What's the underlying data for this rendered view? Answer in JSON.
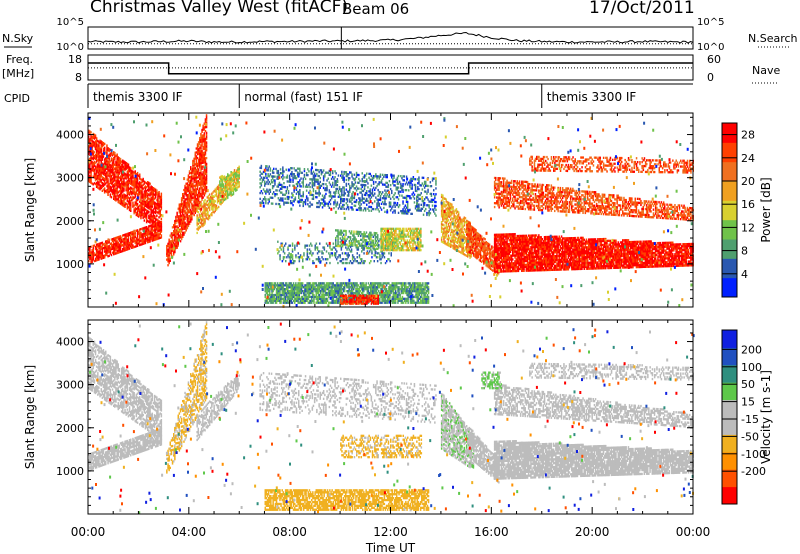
{
  "header": {
    "title": "Christmas Valley West (fitACF)",
    "beam": "Beam 06",
    "date": "17/Oct/2011"
  },
  "labels": {
    "nsky": "N.Sky",
    "nsearch": "N.Search",
    "freq": "Freq.",
    "freq_unit": "[MHz]",
    "nave": "Nave",
    "cpid": "CPID",
    "noise_left_ticks": [
      "10^5",
      "10^0"
    ],
    "noise_right_ticks": [
      "10^5",
      "10^0"
    ],
    "freq_ticks": [
      "18",
      "8"
    ],
    "nave_ticks": [
      "60",
      "0"
    ]
  },
  "cpid_segments": [
    {
      "start_h": 0,
      "end_h": 6,
      "label": "themis 3300 IF"
    },
    {
      "start_h": 6,
      "end_h": 18,
      "label": "normal (fast) 151 IF"
    },
    {
      "start_h": 18,
      "end_h": 24,
      "label": "themis 3300 IF"
    }
  ],
  "colors": {
    "power_scale": [
      "#0020ff",
      "#2a58b0",
      "#4f9f6f",
      "#6fc24a",
      "#d8d030",
      "#f0a020",
      "#f07020",
      "#ff4000",
      "#ff0000"
    ],
    "velocity_scale": [
      "#ff0000",
      "#ff5000",
      "#ff9000",
      "#f0b020",
      "#bcbcbc",
      "#bcbcbc",
      "#5ec84a",
      "#2f8f7f",
      "#2050c0",
      "#1020e0"
    ]
  },
  "chart_data": [
    {
      "type": "line",
      "name": "noise",
      "x": [
        0,
        1,
        2,
        3,
        4,
        5,
        6,
        7,
        8,
        9,
        10,
        11,
        12,
        13,
        14,
        15,
        16,
        17,
        18,
        19,
        20,
        21,
        22,
        23,
        24
      ],
      "y_sky_log": [
        1.7,
        1.6,
        1.6,
        1.7,
        1.8,
        1.6,
        1.6,
        1.7,
        1.7,
        1.8,
        1.8,
        1.9,
        2.0,
        2.4,
        3.1,
        3.6,
        2.6,
        1.9,
        1.7,
        1.6,
        1.6,
        1.6,
        1.7,
        1.6,
        1.6
      ],
      "y_search_log": [
        1.2,
        1.2,
        1.2,
        1.2,
        1.2,
        1.2,
        1.2,
        1.2,
        1.2,
        1.2,
        1.2,
        1.2,
        1.2,
        1.2,
        1.2,
        1.2,
        1.2,
        1.2,
        1.2,
        1.2,
        1.2,
        1.2,
        1.2,
        1.2,
        1.2
      ],
      "ylim": [
        0,
        5
      ]
    },
    {
      "type": "line",
      "name": "frequency",
      "x": [
        0,
        3.2,
        3.2,
        15.1,
        15.1,
        24
      ],
      "freq_mhz": [
        14.8,
        14.8,
        10.5,
        10.5,
        14.8,
        14.8
      ],
      "nave": [
        29,
        29,
        29,
        29,
        29,
        29
      ],
      "ylim_freq": [
        8,
        18
      ],
      "ylim_nave": [
        0,
        60
      ]
    },
    {
      "type": "heatmap",
      "name": "power",
      "xlabel": "",
      "ylabel": "Slant Range [km]",
      "xlim": [
        0,
        24
      ],
      "ylim": [
        0,
        4500
      ],
      "yticks": [
        1000,
        2000,
        3000,
        4000
      ],
      "colorbar_label": "Power [dB]",
      "colorbar_ticks": [
        4,
        8,
        12,
        16,
        20,
        24,
        28
      ],
      "colorbar_range": [
        0,
        30
      ],
      "bands": [
        {
          "t0": 0.0,
          "t1": 2.9,
          "r0": 2900,
          "r1": 4100,
          "r0e": 1700,
          "r1e": 2600,
          "value": 27,
          "density": 0.75
        },
        {
          "t0": 0.0,
          "t1": 2.9,
          "r0": 1000,
          "r1": 1400,
          "r0e": 1600,
          "r1e": 2000,
          "value": 27,
          "density": 0.85
        },
        {
          "t0": 0.3,
          "t1": 1.5,
          "r0": 3100,
          "r1": 3300,
          "r0e": 3100,
          "r1e": 3300,
          "value": 28,
          "density": 0.6
        },
        {
          "t0": 3.1,
          "t1": 4.7,
          "r0": 900,
          "r1": 1400,
          "r0e": 2700,
          "r1e": 4500,
          "value": 26,
          "density": 0.8
        },
        {
          "t0": 4.3,
          "t1": 6.0,
          "r0": 1700,
          "r1": 2300,
          "r0e": 2900,
          "r1e": 3300,
          "value": 18,
          "density": 0.7
        },
        {
          "t0": 5.2,
          "t1": 6.0,
          "r0": 2400,
          "r1": 3000,
          "r0e": 2700,
          "r1e": 3200,
          "value": 14,
          "density": 0.6
        },
        {
          "t0": 6.8,
          "t1": 13.8,
          "r0": 2400,
          "r1": 3300,
          "r0e": 2100,
          "r1e": 3000,
          "value": 6,
          "density": 0.35
        },
        {
          "t0": 7.5,
          "t1": 12.0,
          "r0": 1000,
          "r1": 1500,
          "r0e": 1000,
          "r1e": 1400,
          "value": 7,
          "density": 0.25
        },
        {
          "t0": 9.8,
          "t1": 12.2,
          "r0": 1400,
          "r1": 1800,
          "r0e": 1300,
          "r1e": 1700,
          "value": 10,
          "density": 0.55
        },
        {
          "t0": 11.6,
          "t1": 13.2,
          "r0": 1300,
          "r1": 1800,
          "r0e": 1300,
          "r1e": 1800,
          "value": 15,
          "density": 0.7
        },
        {
          "t0": 7.0,
          "t1": 13.5,
          "r0": 80,
          "r1": 550,
          "r0e": 80,
          "r1e": 550,
          "value": 9,
          "density": 0.8
        },
        {
          "t0": 10.0,
          "t1": 11.5,
          "r0": 60,
          "r1": 260,
          "r0e": 60,
          "r1e": 260,
          "value": 27,
          "density": 0.8
        },
        {
          "t0": 14.0,
          "t1": 15.2,
          "r0": 1500,
          "r1": 2600,
          "r0e": 1100,
          "r1e": 1900,
          "value": 18,
          "density": 0.7
        },
        {
          "t0": 15.0,
          "t1": 16.3,
          "r0": 1300,
          "r1": 2000,
          "r0e": 700,
          "r1e": 1200,
          "value": 24,
          "density": 0.8
        },
        {
          "t0": 16.1,
          "t1": 24.0,
          "r0": 800,
          "r1": 1700,
          "r0e": 950,
          "r1e": 1450,
          "value": 28,
          "density": 0.9
        },
        {
          "t0": 16.1,
          "t1": 24.0,
          "r0": 2300,
          "r1": 3000,
          "r0e": 2000,
          "r1e": 2300,
          "value": 24,
          "density": 0.6
        },
        {
          "t0": 17.5,
          "t1": 24.0,
          "r0": 3150,
          "r1": 3500,
          "r0e": 3100,
          "r1e": 3400,
          "value": 24,
          "density": 0.45
        }
      ]
    },
    {
      "type": "heatmap",
      "name": "velocity",
      "xlabel": "Time UT",
      "ylabel": "Slant Range [km]",
      "xlim": [
        0,
        24
      ],
      "ylim": [
        0,
        4500
      ],
      "yticks": [
        1000,
        2000,
        3000,
        4000
      ],
      "xticks": [
        "00:00",
        "04:00",
        "08:00",
        "12:00",
        "16:00",
        "20:00",
        "00:00"
      ],
      "colorbar_label": "Velocity [m s-1]",
      "colorbar_ticks": [
        200,
        100,
        50,
        15,
        -15,
        -50,
        -100,
        -200
      ],
      "colorbar_range": [
        -250,
        250
      ],
      "bands": [
        {
          "t0": 0.0,
          "t1": 2.9,
          "r0": 2900,
          "r1": 4100,
          "r0e": 1700,
          "r1e": 2600,
          "value": 0,
          "density": 0.65
        },
        {
          "t0": 0.0,
          "t1": 2.9,
          "r0": 1000,
          "r1": 1400,
          "r0e": 1600,
          "r1e": 2000,
          "value": 0,
          "density": 0.8
        },
        {
          "t0": 3.1,
          "t1": 4.7,
          "r0": 900,
          "r1": 1400,
          "r0e": 2700,
          "r1e": 4500,
          "value": -60,
          "density": 0.55
        },
        {
          "t0": 4.3,
          "t1": 6.0,
          "r0": 1700,
          "r1": 2300,
          "r0e": 2900,
          "r1e": 3300,
          "value": 0,
          "density": 0.55
        },
        {
          "t0": 6.8,
          "t1": 13.8,
          "r0": 2400,
          "r1": 3300,
          "r0e": 2100,
          "r1e": 3000,
          "value": 0,
          "density": 0.25
        },
        {
          "t0": 10.0,
          "t1": 13.2,
          "r0": 1300,
          "r1": 1800,
          "r0e": 1300,
          "r1e": 1800,
          "value": -60,
          "density": 0.4
        },
        {
          "t0": 7.0,
          "t1": 13.5,
          "r0": 80,
          "r1": 550,
          "r0e": 80,
          "r1e": 550,
          "value": -70,
          "density": 0.7
        },
        {
          "t0": 14.0,
          "t1": 15.3,
          "r0": 1500,
          "r1": 2800,
          "r0e": 1000,
          "r1e": 1800,
          "value": 40,
          "density": 0.7
        },
        {
          "t0": 15.1,
          "t1": 16.3,
          "r0": 1300,
          "r1": 2000,
          "r0e": 700,
          "r1e": 1200,
          "value": 0,
          "density": 0.75
        },
        {
          "t0": 16.1,
          "t1": 24.0,
          "r0": 800,
          "r1": 1700,
          "r0e": 950,
          "r1e": 1450,
          "value": 0,
          "density": 0.85
        },
        {
          "t0": 16.1,
          "t1": 24.0,
          "r0": 2300,
          "r1": 3000,
          "r0e": 2000,
          "r1e": 2300,
          "value": 0,
          "density": 0.55
        },
        {
          "t0": 17.5,
          "t1": 24.0,
          "r0": 3150,
          "r1": 3500,
          "r0e": 3100,
          "r1e": 3400,
          "value": 0,
          "density": 0.4
        },
        {
          "t0": 15.6,
          "t1": 16.4,
          "r0": 2900,
          "r1": 3300,
          "r0e": 2900,
          "r1e": 3300,
          "value": 60,
          "density": 0.5
        }
      ]
    }
  ]
}
